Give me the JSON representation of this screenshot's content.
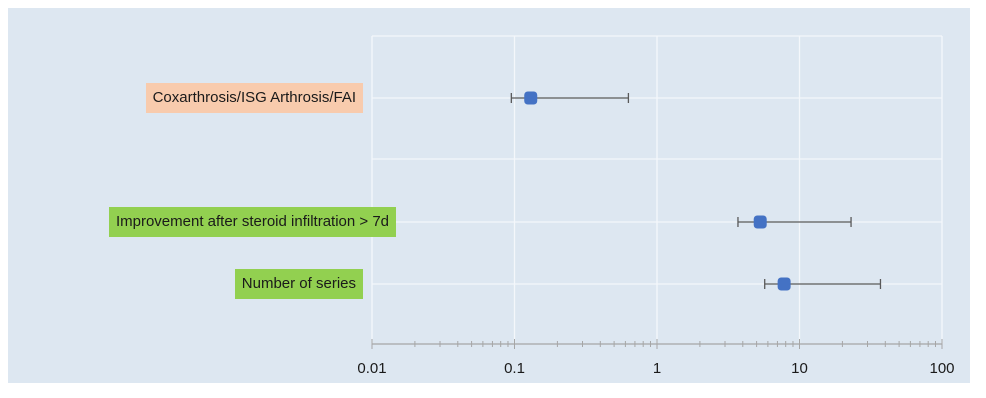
{
  "chart_data": {
    "type": "forest",
    "x_scale": "log",
    "xlim": [
      0.01,
      100
    ],
    "x_ticks": [
      0.01,
      0.1,
      1,
      10,
      100
    ],
    "x_tick_labels": [
      "0.01",
      "0.1",
      "1",
      "10",
      "100"
    ],
    "grid": true,
    "rows": [
      {
        "label": "Coxarthrosis/ISG Arthrosis/FAI",
        "estimate": 0.13,
        "ci_low": 0.095,
        "ci_high": 0.63,
        "label_color": "#f8cbad"
      },
      {
        "label": "Improvement after steroid infiltration > 7d",
        "estimate": 5.3,
        "ci_low": 3.7,
        "ci_high": 23,
        "label_color": "#92d050"
      },
      {
        "label": "Number of series",
        "estimate": 7.8,
        "ci_low": 5.7,
        "ci_high": 37,
        "label_color": "#92d050"
      }
    ],
    "marker_color": "#4472c4",
    "whisker_color": "#595959"
  }
}
